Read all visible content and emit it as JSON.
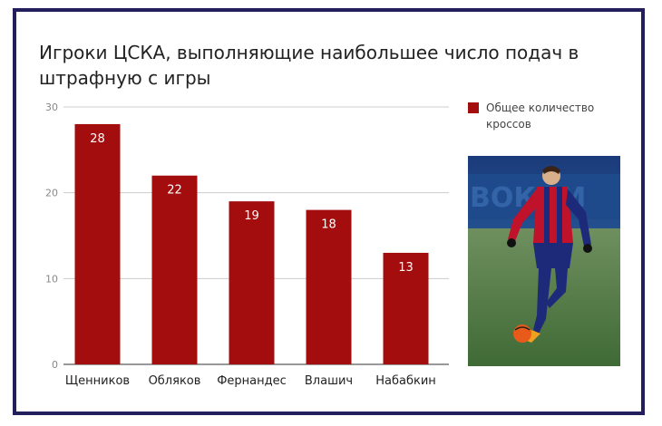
{
  "title": "Игроки ЦСКА, выполняющие наибольшее число подач в штрафную с игры",
  "colors": {
    "bar": "#a30d0d",
    "grid": "#cccccc",
    "frame": "#231f5c"
  },
  "chart_data": {
    "type": "bar",
    "categories": [
      "Щенников",
      "Обляков",
      "Фернандес",
      "Влашич",
      "Набабкин"
    ],
    "series": [
      {
        "name": "Общее количество кроссов",
        "values": [
          28,
          22,
          19,
          18,
          13
        ]
      }
    ],
    "ylim": [
      0,
      30
    ],
    "yticks": [
      "0",
      "10",
      "20",
      "30"
    ],
    "grid": true,
    "legend_position": "right",
    "data_labels": [
      "28",
      "22",
      "19",
      "18",
      "13"
    ]
  },
  "legend": {
    "label": "Общее количество кроссов"
  },
  "photo": {
    "subject": "football-player-photo",
    "background_text": "ВОКОМ"
  }
}
